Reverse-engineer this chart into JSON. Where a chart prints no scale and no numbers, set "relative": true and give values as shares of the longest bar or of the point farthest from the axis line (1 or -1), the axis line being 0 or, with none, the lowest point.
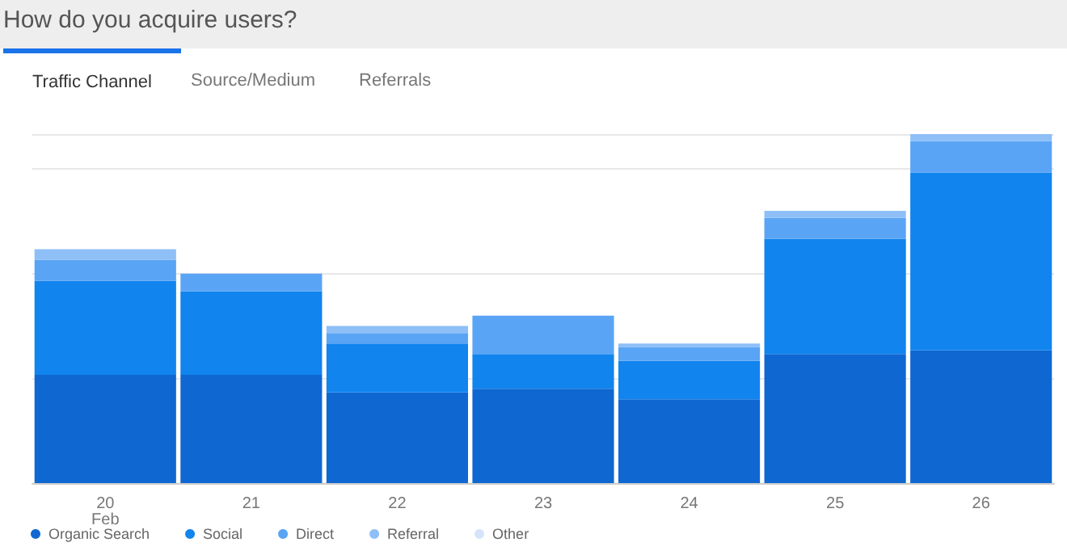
{
  "chart_data": {
    "type": "bar",
    "title": "How do you acquire users?",
    "annotations": [
      "Traffic Channel",
      "Source/Medium",
      "Referrals"
    ],
    "categories": [
      "20\nFeb",
      "21",
      "22",
      "23",
      "24",
      "25",
      "26"
    ],
    "stacked": true,
    "relative": true,
    "grid": "y",
    "legend": "bottom left",
    "series": [
      {
        "name": "Organic Search",
        "color": "#0f67d2",
        "values": [
          0.31,
          0.31,
          0.26,
          0.27,
          0.24,
          0.37,
          0.38
        ]
      },
      {
        "name": "Social",
        "color": "#1184ee",
        "values": [
          0.27,
          0.24,
          0.14,
          0.1,
          0.11,
          0.33,
          0.51
        ]
      },
      {
        "name": "Direct",
        "color": "#5aa4f5",
        "values": [
          0.06,
          0.05,
          0.03,
          0.11,
          0.04,
          0.06,
          0.09
        ]
      },
      {
        "name": "Referral",
        "color": "#8ebff7",
        "values": [
          0.03,
          0,
          0.02,
          0,
          0.01,
          0.02,
          0.02
        ]
      },
      {
        "name": "Other",
        "color": "#d6e4fb",
        "values": [
          0,
          0,
          0,
          0,
          0,
          0,
          0
        ]
      }
    ]
  }
}
